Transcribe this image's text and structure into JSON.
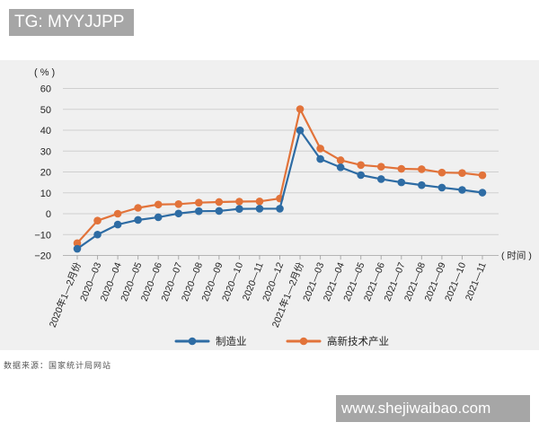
{
  "badge_top": "TG: MYYJJPP",
  "watermark": "www.shejiwaibao.com",
  "source_note": "数据来源：国家统计局网站",
  "colors": {
    "manufacturing": "#2e6ca4",
    "hightech": "#e2733a",
    "grid": "#cfcfcf",
    "panel_bg": "#f0f0f0"
  },
  "chart_data": {
    "type": "line",
    "title": "",
    "ylabel": "（%）",
    "xlabel": "（时间）",
    "ylim": [
      -20,
      60
    ],
    "yticks": [
      60,
      50,
      40,
      30,
      20,
      10,
      0,
      -10,
      -20
    ],
    "grid": true,
    "legend_position": "bottom",
    "categories": [
      "2020年1—2月份",
      "2020—03",
      "2020—04",
      "2020—05",
      "2020—06",
      "2020—07",
      "2020—08",
      "2020—09",
      "2020—10",
      "2020—11",
      "2020—12",
      "2021年1—2月份",
      "2021—03",
      "2021—04",
      "2021—05",
      "2021—06",
      "2021—07",
      "2021—08",
      "2021—09",
      "2021—10",
      "2021—11"
    ],
    "series": [
      {
        "name": "制造业",
        "color": "#2e6ca4",
        "values": [
          -16.8,
          -10.0,
          -5.2,
          -3.0,
          -1.7,
          0.1,
          1.2,
          1.3,
          2.3,
          2.4,
          2.4,
          39.9,
          26.2,
          22.2,
          18.5,
          16.6,
          15.0,
          13.7,
          12.5,
          11.4,
          10.1
        ]
      },
      {
        "name": "高新技术产业",
        "color": "#e2733a",
        "values": [
          -14.1,
          -3.3,
          0.0,
          2.8,
          4.4,
          4.6,
          5.3,
          5.6,
          5.8,
          5.9,
          7.3,
          50.1,
          31.2,
          25.6,
          23.3,
          22.5,
          21.5,
          21.3,
          19.7,
          19.5,
          18.4
        ]
      }
    ]
  }
}
